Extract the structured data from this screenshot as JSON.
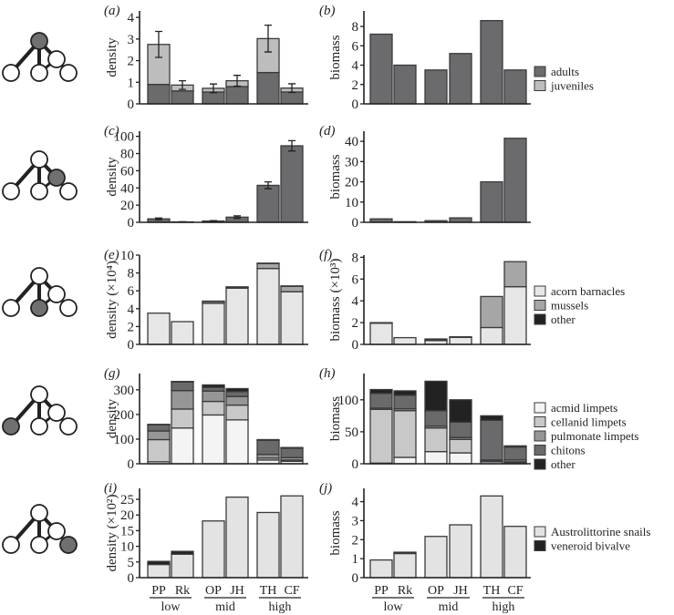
{
  "sites": [
    "PP",
    "Rk",
    "OP",
    "JH",
    "TH",
    "CF"
  ],
  "zones": [
    "low",
    "mid",
    "high"
  ],
  "food_web_highlight": [
    "top",
    "mid-right",
    "bottom-middle",
    "bottom-left",
    "bottom-right"
  ],
  "legends": [
    {
      "items": [
        {
          "label": "adults",
          "color": "#6b6b6e"
        },
        {
          "label": "juveniles",
          "color": "#bdbdbd"
        }
      ]
    },
    {
      "items": []
    },
    {
      "items": [
        {
          "label": "acorn barnacles",
          "color": "#e6e6e6"
        },
        {
          "label": "mussels",
          "color": "#a6a6a6"
        },
        {
          "label": "other",
          "color": "#222222"
        }
      ]
    },
    {
      "items": [
        {
          "label": "acmid limpets",
          "color": "#f4f4f4"
        },
        {
          "label": "cellanid limpets",
          "color": "#c8c8c8"
        },
        {
          "label": "pulmonate limpets",
          "color": "#969696"
        },
        {
          "label": "chitons",
          "color": "#6a6a6c"
        },
        {
          "label": "other",
          "color": "#222222"
        }
      ]
    },
    {
      "items": [
        {
          "label": "Austrolittorine snails",
          "color": "#e3e3e3"
        },
        {
          "label": "veneroid bivalve",
          "color": "#222222"
        }
      ]
    }
  ],
  "chart_data": [
    {
      "panel": "(a)",
      "type": "bar",
      "stacked": true,
      "ylabel": "density",
      "ylim": [
        0,
        4.3
      ],
      "yticks": [
        0,
        1,
        2,
        3,
        4
      ],
      "categories": [
        "PP",
        "Rk",
        "OP",
        "JH",
        "TH",
        "CF"
      ],
      "series": [
        {
          "name": "adults",
          "color": "#6b6b6e",
          "values": [
            0.9,
            0.6,
            0.55,
            0.8,
            1.45,
            0.55
          ]
        },
        {
          "name": "juveniles",
          "color": "#bdbdbd",
          "values": [
            1.85,
            0.27,
            0.17,
            0.27,
            1.57,
            0.18
          ]
        }
      ],
      "errors": [
        0.6,
        0.2,
        0.2,
        0.25,
        0.62,
        0.2
      ]
    },
    {
      "panel": "(b)",
      "type": "bar",
      "stacked": true,
      "ylabel": "biomass",
      "ylim": [
        0,
        9.6
      ],
      "yticks": [
        0,
        2,
        4,
        6,
        8
      ],
      "categories": [
        "PP",
        "Rk",
        "OP",
        "JH",
        "TH",
        "CF"
      ],
      "series": [
        {
          "name": "adults",
          "color": "#6b6b6e",
          "values": [
            7.2,
            4.0,
            3.5,
            5.2,
            8.6,
            3.5
          ]
        }
      ]
    },
    {
      "panel": "(c)",
      "type": "bar",
      "stacked": true,
      "ylabel": "density",
      "ylim": [
        0,
        106
      ],
      "yticks": [
        0,
        20,
        40,
        60,
        80,
        100
      ],
      "categories": [
        "PP",
        "Rk",
        "OP",
        "JH",
        "TH",
        "CF"
      ],
      "series": [
        {
          "name": "adults",
          "color": "#6b6b6e",
          "values": [
            4,
            0.5,
            1.5,
            6,
            43,
            89
          ]
        }
      ],
      "errors": [
        1,
        0.2,
        0.5,
        1.5,
        4,
        6
      ]
    },
    {
      "panel": "(d)",
      "type": "bar",
      "stacked": true,
      "ylabel": "biomass",
      "ylim": [
        0,
        45
      ],
      "yticks": [
        0,
        10,
        20,
        30,
        40
      ],
      "categories": [
        "PP",
        "Rk",
        "OP",
        "JH",
        "TH",
        "CF"
      ],
      "series": [
        {
          "name": "adults",
          "color": "#6b6b6e",
          "values": [
            1.7,
            0.3,
            0.8,
            2.2,
            20,
            41.5
          ]
        }
      ]
    },
    {
      "panel": "(e)",
      "type": "bar",
      "stacked": true,
      "ylabel": "density (×10⁴)",
      "ylim": [
        0,
        10
      ],
      "yticks": [
        0,
        2,
        4,
        6,
        8,
        10
      ],
      "categories": [
        "PP",
        "Rk",
        "OP",
        "JH",
        "TH",
        "CF"
      ],
      "series": [
        {
          "name": "acorn barnacles",
          "color": "#e6e6e6",
          "values": [
            3.5,
            2.55,
            4.6,
            6.3,
            8.5,
            5.9
          ]
        },
        {
          "name": "mussels",
          "color": "#a6a6a6",
          "values": [
            0,
            0,
            0.2,
            0.1,
            0.55,
            0.6
          ]
        },
        {
          "name": "other",
          "color": "#222222",
          "values": [
            0,
            0,
            0.05,
            0.05,
            0.05,
            0.05
          ]
        }
      ]
    },
    {
      "panel": "(f)",
      "type": "bar",
      "stacked": true,
      "ylabel": "biomass (×10³)",
      "ylim": [
        0,
        8.2
      ],
      "yticks": [
        0,
        2,
        4,
        6,
        8
      ],
      "categories": [
        "PP",
        "Rk",
        "OP",
        "JH",
        "TH",
        "CF"
      ],
      "series": [
        {
          "name": "acorn barnacles",
          "color": "#e6e6e6",
          "values": [
            1.95,
            0.62,
            0.35,
            0.65,
            1.55,
            5.3
          ]
        },
        {
          "name": "mussels",
          "color": "#a6a6a6",
          "values": [
            0,
            0,
            0.1,
            0.05,
            2.85,
            2.3
          ]
        },
        {
          "name": "other",
          "color": "#222222",
          "values": [
            0.05,
            0,
            0.05,
            0,
            0,
            0
          ]
        }
      ]
    },
    {
      "panel": "(g)",
      "type": "bar",
      "stacked": true,
      "ylabel": "density",
      "ylim": [
        0,
        366
      ],
      "yticks": [
        0,
        100,
        200,
        300
      ],
      "categories": [
        "PP",
        "Rk",
        "OP",
        "JH",
        "TH",
        "CF"
      ],
      "series": [
        {
          "name": "acmid limpets",
          "color": "#f4f4f4",
          "values": [
            8,
            145,
            198,
            178,
            15,
            10
          ]
        },
        {
          "name": "cellanid limpets",
          "color": "#c8c8c8",
          "values": [
            90,
            77,
            55,
            60,
            8,
            5
          ]
        },
        {
          "name": "pulmonate limpets",
          "color": "#969696",
          "values": [
            35,
            75,
            42,
            35,
            15,
            10
          ]
        },
        {
          "name": "chitons",
          "color": "#6a6a6c",
          "values": [
            25,
            35,
            15,
            20,
            57,
            38
          ]
        },
        {
          "name": "other",
          "color": "#222222",
          "values": [
            2,
            2,
            10,
            12,
            3,
            3
          ]
        }
      ]
    },
    {
      "panel": "(h)",
      "type": "bar",
      "stacked": true,
      "ylabel": "biomass",
      "ylim": [
        0,
        141
      ],
      "yticks": [
        0,
        50,
        100
      ],
      "categories": [
        "PP",
        "Rk",
        "OP",
        "JH",
        "TH",
        "CF"
      ],
      "series": [
        {
          "name": "acmid limpets",
          "color": "#f4f4f4",
          "values": [
            1,
            10,
            19,
            17,
            3,
            2
          ]
        },
        {
          "name": "cellanid limpets",
          "color": "#c8c8c8",
          "values": [
            84,
            73,
            37,
            21,
            1,
            1
          ]
        },
        {
          "name": "pulmonate limpets",
          "color": "#969696",
          "values": [
            2,
            3,
            3,
            3,
            2,
            3
          ]
        },
        {
          "name": "chitons",
          "color": "#6a6a6c",
          "values": [
            23,
            21,
            24,
            24,
            62,
            20
          ]
        },
        {
          "name": "other",
          "color": "#222222",
          "values": [
            6,
            7,
            46,
            35,
            7,
            2
          ]
        }
      ]
    },
    {
      "panel": "(i)",
      "type": "bar",
      "stacked": true,
      "ylabel": "density (×10²)",
      "ylim": [
        0,
        28.5
      ],
      "yticks": [
        0,
        5,
        10,
        15,
        20,
        25
      ],
      "categories": [
        "PP",
        "Rk",
        "OP",
        "JH",
        "TH",
        "CF"
      ],
      "series": [
        {
          "name": "Austrolittorine snails",
          "color": "#e3e3e3",
          "values": [
            4.2,
            7.5,
            18.1,
            25.7,
            20.8,
            26.1
          ]
        },
        {
          "name": "veneroid bivalve",
          "color": "#222222",
          "values": [
            1,
            0.9,
            0,
            0,
            0,
            0
          ]
        }
      ]
    },
    {
      "panel": "(j)",
      "type": "bar",
      "stacked": true,
      "ylabel": "biomass",
      "ylim": [
        0,
        4.7
      ],
      "yticks": [
        0,
        1,
        2,
        3,
        4
      ],
      "categories": [
        "PP",
        "Rk",
        "OP",
        "JH",
        "TH",
        "CF"
      ],
      "series": [
        {
          "name": "Austrolittorine snails",
          "color": "#e3e3e3",
          "values": [
            0.93,
            1.27,
            2.17,
            2.78,
            4.3,
            2.7
          ]
        },
        {
          "name": "veneroid bivalve",
          "color": "#222222",
          "values": [
            0,
            0.07,
            0,
            0,
            0,
            0
          ]
        }
      ]
    }
  ]
}
